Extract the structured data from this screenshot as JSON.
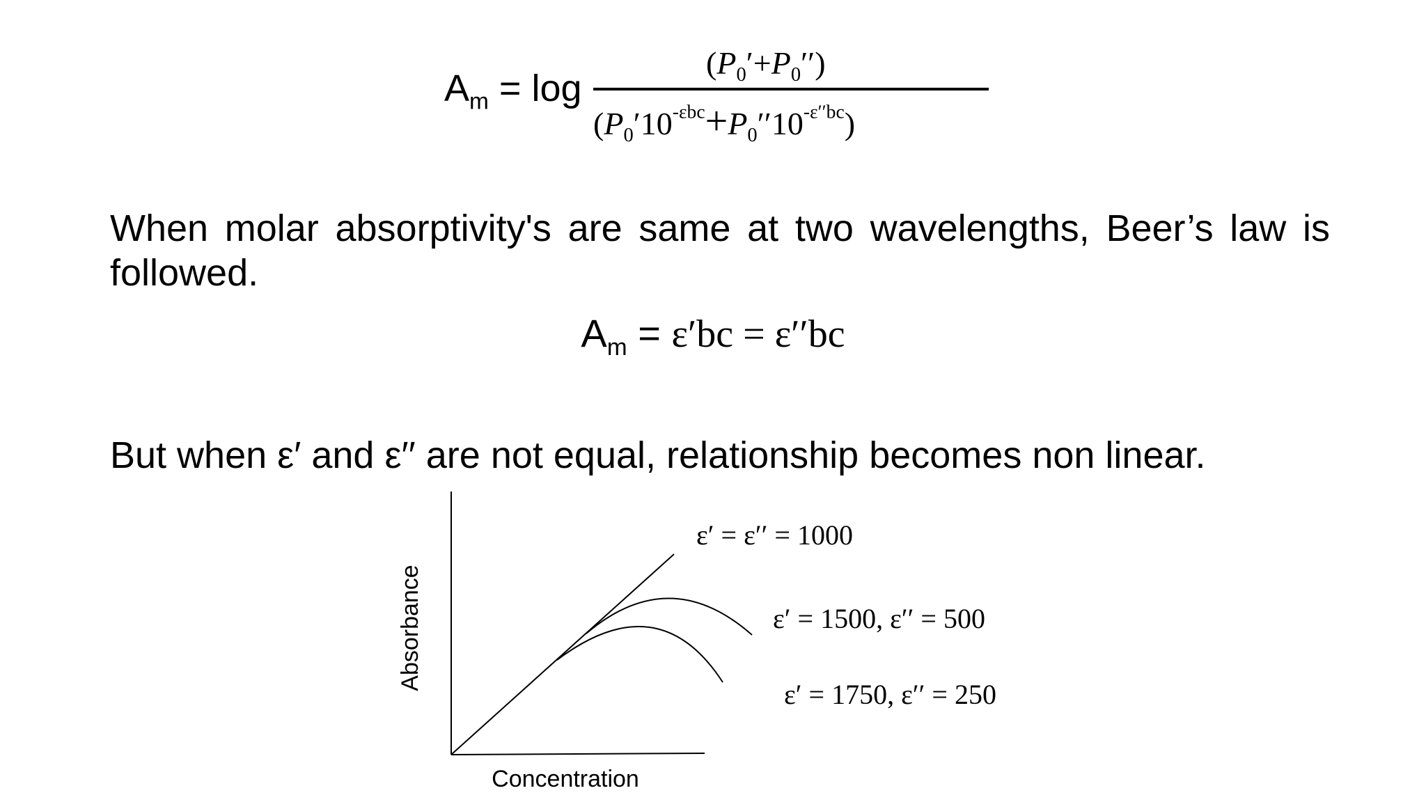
{
  "eq1": {
    "lhs": "A",
    "lhs_sub": "m",
    "eq_log": " = log",
    "num": {
      "open": "(",
      "P1": "P",
      "sub1": "0",
      "prime1": "′",
      "plus": "+",
      "P2": "P",
      "sub2": "0",
      "prime2": "′′",
      "close": ")"
    },
    "den": {
      "open": "(",
      "P1": "P",
      "sub1": "0",
      "prime1": "′",
      "ten1": "10",
      "exp1": "-εbc",
      "plus": "+",
      "P2": "P",
      "sub2": "0",
      "prime2": "′′",
      "ten2": "10",
      "exp2": "-ε′′bc",
      "close": ")"
    }
  },
  "para1": "When molar absorptivity's are same at two wavelengths, Beer’s law is followed.",
  "eq2": {
    "lhs": "A",
    "lhs_sub": "m",
    "eq": " = ",
    "rhs": "ε′bc = ε′′bc"
  },
  "para2": "But when ε′ and ε′′ are not equal, relationship becomes non linear.",
  "figure": {
    "x_axis_label": "Concentration",
    "y_axis_label": "Absorbance",
    "curves": [
      {
        "label": "ε′ = ε′′ = 1000",
        "shape": "linear"
      },
      {
        "label": "ε′ = 1500, ε′′ = 500",
        "shape": "curved"
      },
      {
        "label": "ε′ = 1750, ε′′ = 250",
        "shape": "curved"
      }
    ]
  }
}
